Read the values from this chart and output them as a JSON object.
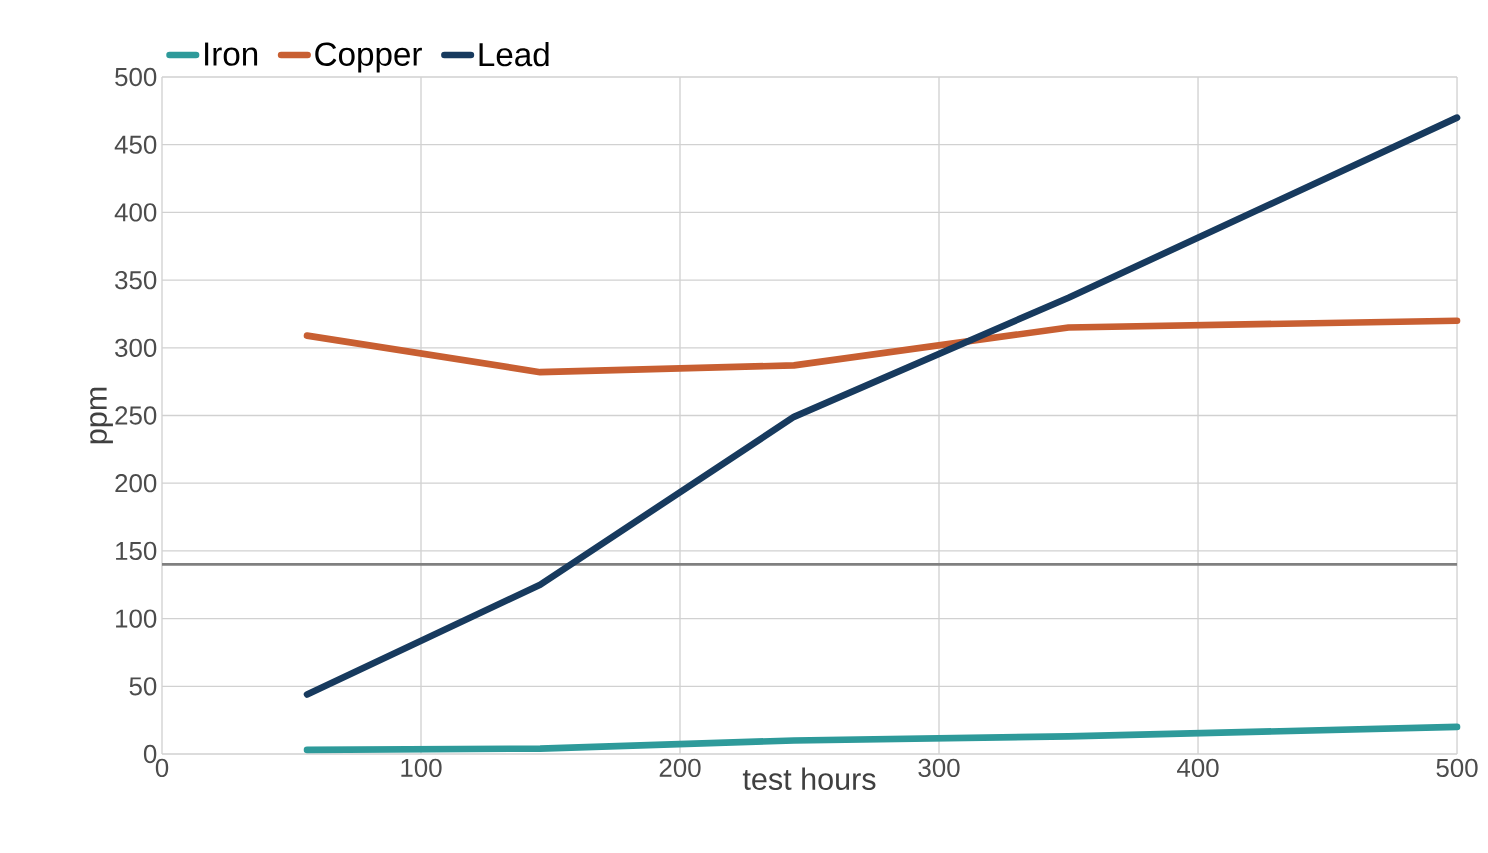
{
  "chart_data": {
    "type": "line",
    "xlabel": "test hours",
    "ylabel": "ppm",
    "x": [
      56,
      146,
      244,
      350,
      500
    ],
    "series": [
      {
        "name": "Iron",
        "color": "#2e9a9a",
        "values": [
          3,
          4,
          10,
          13,
          20
        ]
      },
      {
        "name": "Copper",
        "color": "#c85f32",
        "values": [
          309,
          282,
          287,
          315,
          320
        ]
      },
      {
        "name": "Lead",
        "color": "#173a5e",
        "values": [
          44,
          125,
          249,
          337,
          470
        ]
      }
    ],
    "xlim": [
      0,
      500
    ],
    "xticks": [
      0,
      100,
      200,
      300,
      400,
      500
    ],
    "ylim": [
      0,
      500
    ],
    "yticks": [
      0,
      50,
      100,
      150,
      200,
      250,
      300,
      350,
      400,
      450,
      500
    ],
    "ref_lines": [
      {
        "axis": "y",
        "value": 140,
        "color": "#808080"
      }
    ],
    "grid": true,
    "legend": "top left",
    "marker": "none",
    "line_style": "solid"
  }
}
